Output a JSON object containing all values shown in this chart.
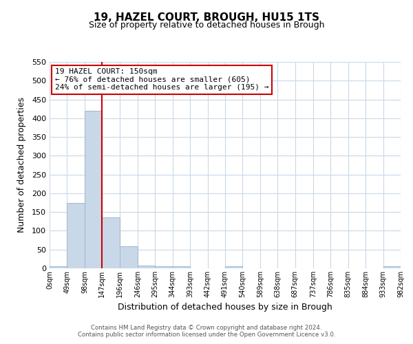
{
  "title": "19, HAZEL COURT, BROUGH, HU15 1TS",
  "subtitle": "Size of property relative to detached houses in Brough",
  "xlabel": "Distribution of detached houses by size in Brough",
  "ylabel": "Number of detached properties",
  "bar_color": "#c8d8e8",
  "bar_edge_color": "#a0b8cc",
  "bin_edges": [
    0,
    49,
    98,
    147,
    196,
    246,
    295,
    344,
    393,
    442,
    491,
    540,
    589,
    638,
    687,
    737,
    786,
    835,
    884,
    933,
    982
  ],
  "bin_labels": [
    "0sqm",
    "49sqm",
    "98sqm",
    "147sqm",
    "196sqm",
    "246sqm",
    "295sqm",
    "344sqm",
    "393sqm",
    "442sqm",
    "491sqm",
    "540sqm",
    "589sqm",
    "638sqm",
    "687sqm",
    "737sqm",
    "786sqm",
    "835sqm",
    "884sqm",
    "933sqm",
    "982sqm"
  ],
  "bar_heights": [
    5,
    175,
    420,
    135,
    58,
    8,
    5,
    5,
    0,
    0,
    5,
    0,
    0,
    0,
    0,
    0,
    0,
    0,
    0,
    5
  ],
  "ylim": [
    0,
    550
  ],
  "yticks": [
    0,
    50,
    100,
    150,
    200,
    250,
    300,
    350,
    400,
    450,
    500,
    550
  ],
  "property_line_x": 147,
  "property_line_color": "#cc0000",
  "annotation_title": "19 HAZEL COURT: 150sqm",
  "annotation_line1": "← 76% of detached houses are smaller (605)",
  "annotation_line2": "24% of semi-detached houses are larger (195) →",
  "annotation_box_color": "#ffffff",
  "annotation_box_edge": "#cc0000",
  "footer_line1": "Contains HM Land Registry data © Crown copyright and database right 2024.",
  "footer_line2": "Contains public sector information licensed under the Open Government Licence v3.0.",
  "background_color": "#ffffff",
  "grid_color": "#c8d8e8"
}
